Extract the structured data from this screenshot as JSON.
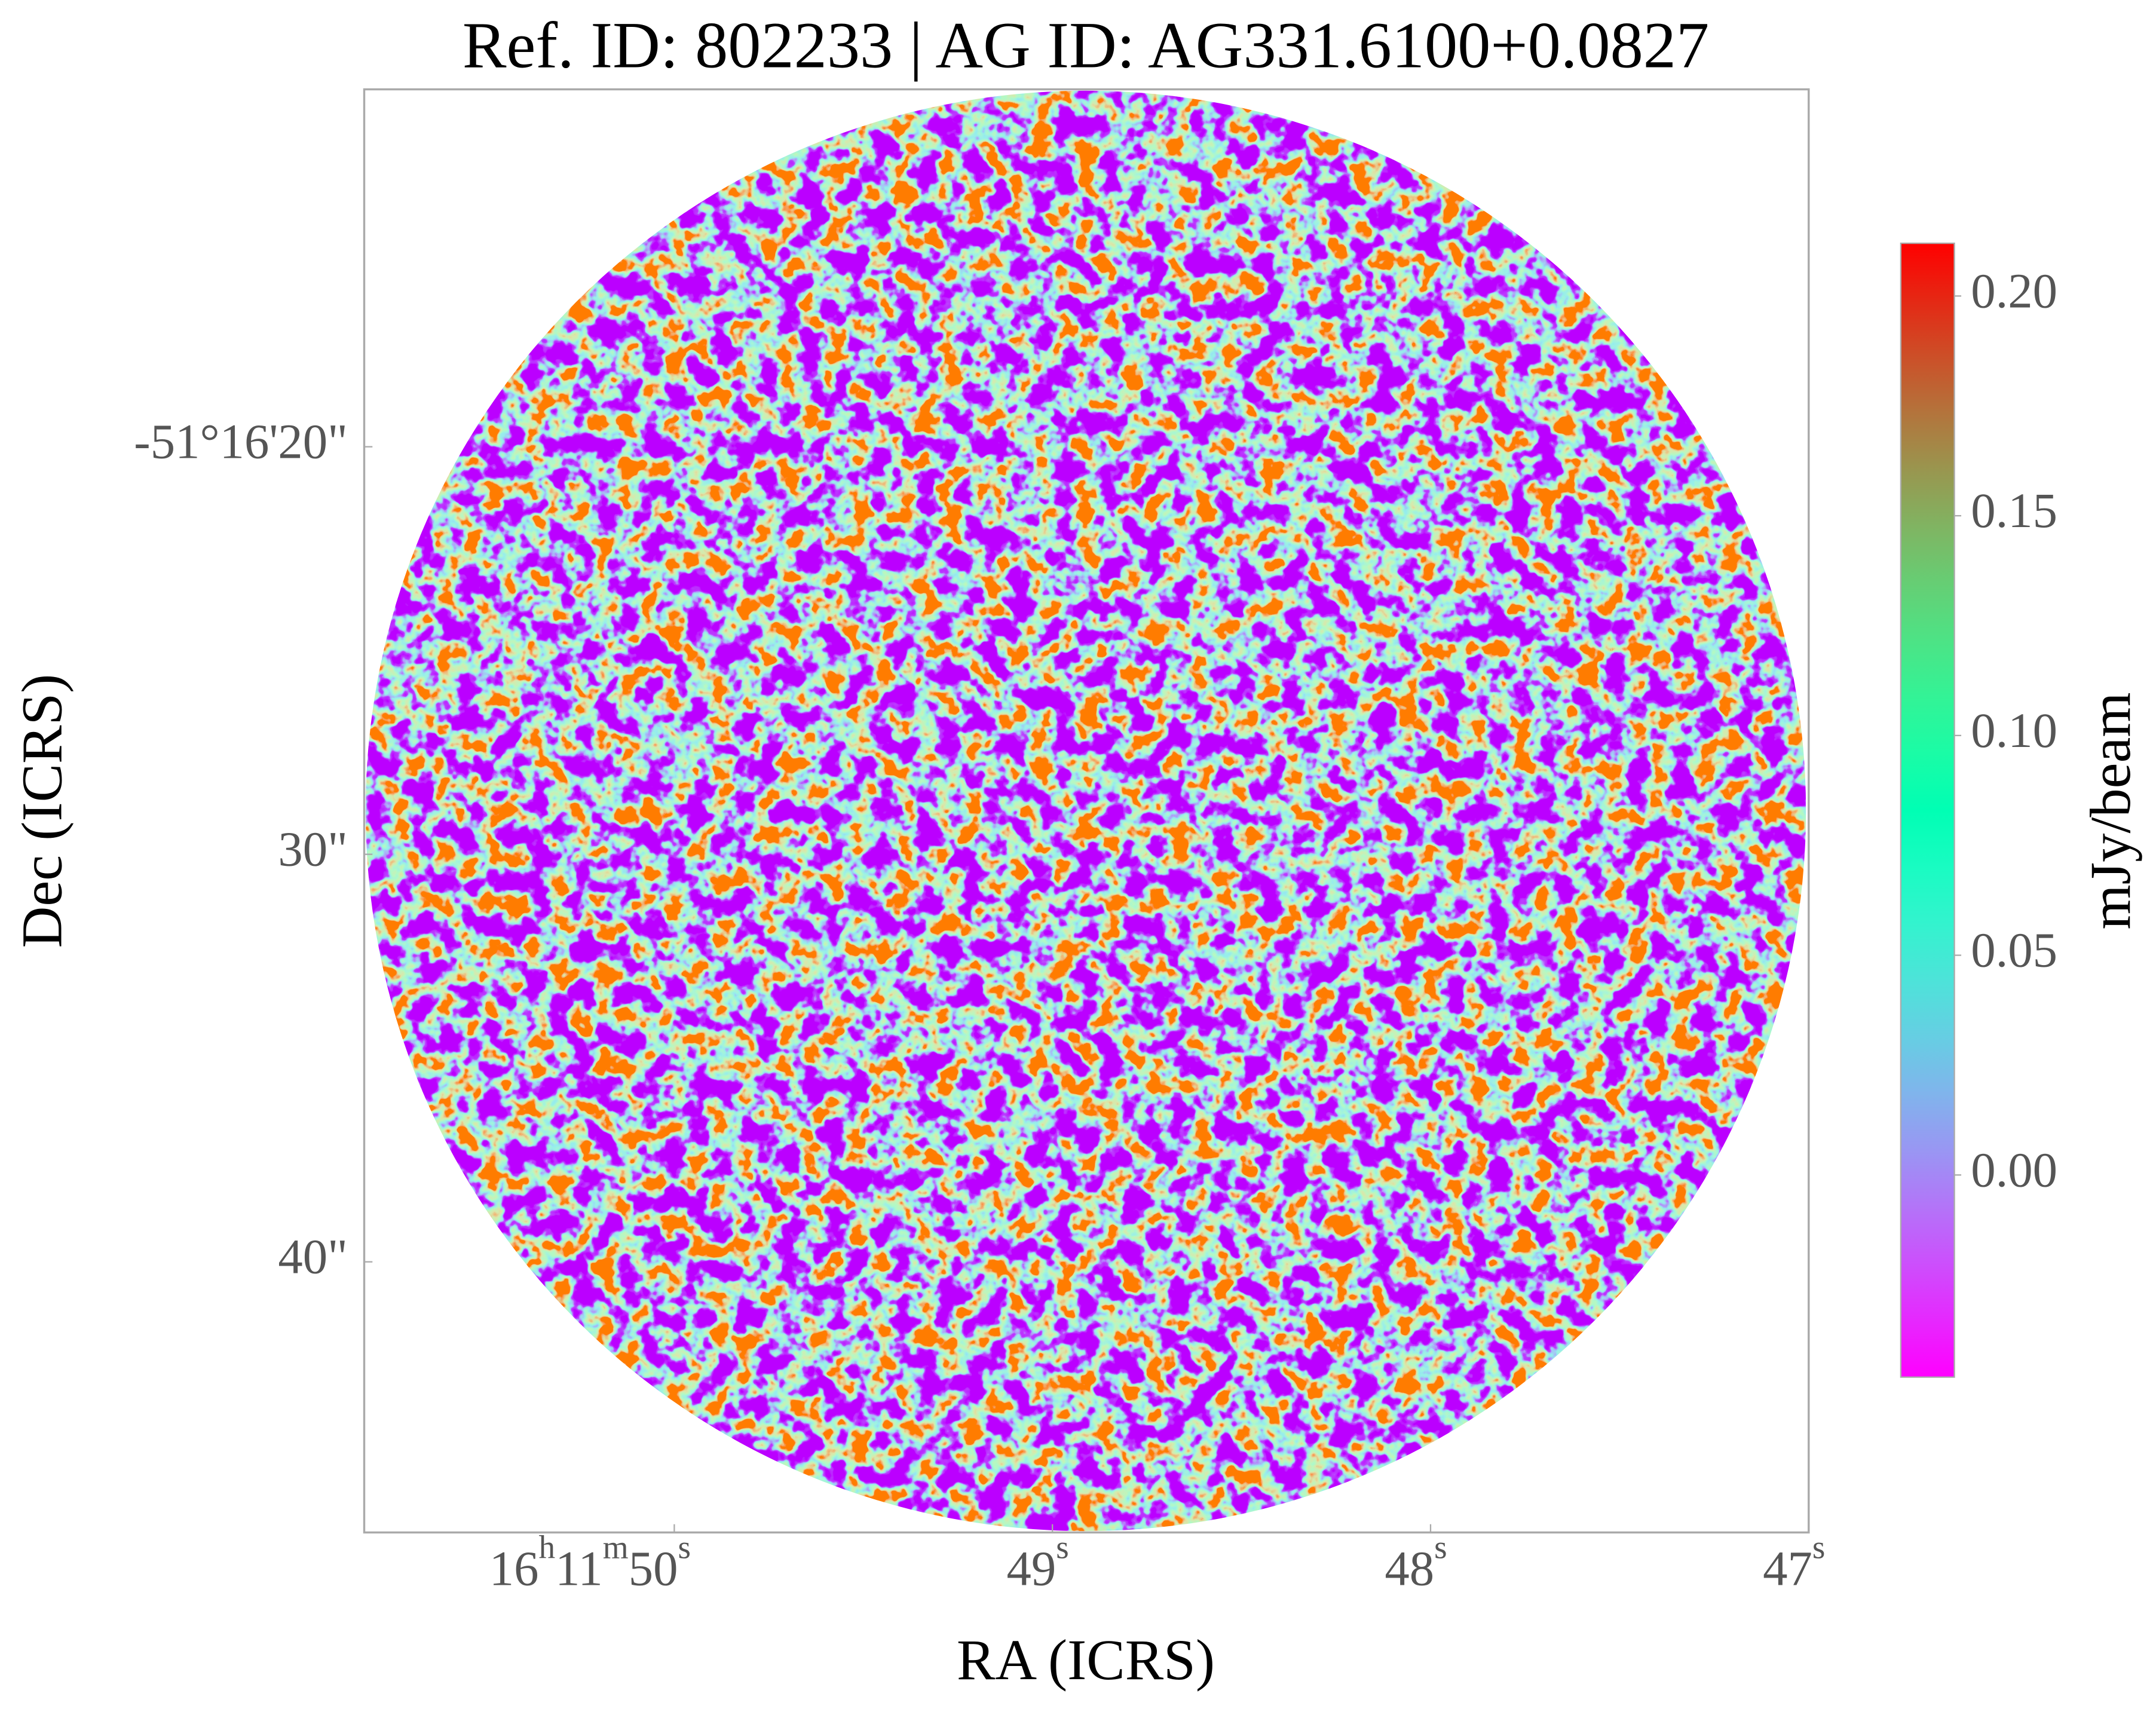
{
  "chart_data": {
    "type": "image",
    "title": "Ref. ID: 802233 | AG ID: AG331.6100+0.0827",
    "xlabel": "RA (ICRS)",
    "ylabel": "Dec (ICRS)",
    "xlim": [
      50.82,
      47
    ],
    "xticks": [
      {
        "value": 50,
        "label": "16h11m50s"
      },
      {
        "value": 49,
        "label": "49s"
      },
      {
        "value": 48,
        "label": "48s"
      },
      {
        "value": 47,
        "label": "47s"
      }
    ],
    "ylim": [
      11.23,
      46.64
    ],
    "yticks": [
      {
        "value": 20,
        "label": "-51°16'20\""
      },
      {
        "value": 30,
        "label": "30\""
      },
      {
        "value": 40,
        "label": "40\""
      }
    ],
    "colormap": "rainbow",
    "colorbar_label": "mJy/beam",
    "clim": [
      -0.046,
      0.212
    ],
    "cticks": [
      {
        "value": 0,
        "label": "0.00"
      },
      0.05,
      {
        "value": 0.1,
        "label": "0.10"
      },
      0.15,
      {
        "value": 0.2,
        "label": "0.20"
      }
    ]
  }
}
